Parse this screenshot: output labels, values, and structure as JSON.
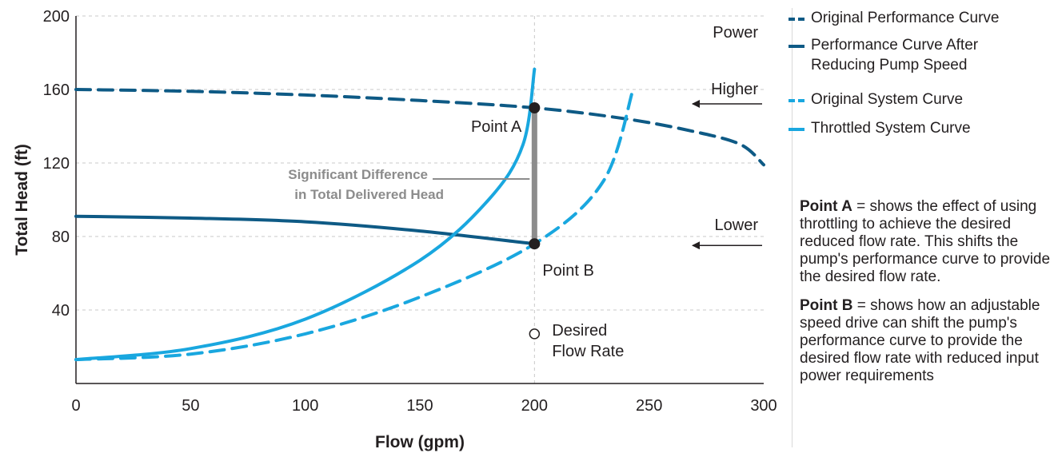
{
  "colors": {
    "dark_blue": "#0e5a85",
    "light_blue": "#19a7df",
    "difference_bar": "#8c8c8c",
    "grid": "#c8c8c8",
    "text": "#231f20"
  },
  "chart_data": {
    "type": "line",
    "xlabel": "Flow (gpm)",
    "ylabel": "Total Head (ft)",
    "xlim": [
      0,
      300
    ],
    "ylim": [
      0,
      200
    ],
    "xticks": [
      "0",
      "50",
      "100",
      "150",
      "200",
      "250",
      "300"
    ],
    "yticks": [
      "40",
      "80",
      "120",
      "160",
      "200"
    ],
    "grid": "dashed",
    "legend_position": "right",
    "series": [
      {
        "name": "Original Performance Curve",
        "style": "dashed",
        "color": "#0e5a85",
        "x": [
          0,
          50,
          100,
          150,
          200,
          240,
          270,
          290,
          300
        ],
        "y": [
          160,
          159,
          157,
          154,
          150,
          144,
          137,
          130,
          119
        ]
      },
      {
        "name": "Performance Curve After Reducing Pump Speed",
        "style": "solid",
        "color": "#0e5a85",
        "x": [
          0,
          50,
          100,
          150,
          200
        ],
        "y": [
          91,
          90,
          88,
          83,
          76
        ]
      },
      {
        "name": "Original System Curve",
        "style": "dashed",
        "color": "#19a7df",
        "x": [
          0,
          50,
          100,
          150,
          200,
          230,
          243
        ],
        "y": [
          13,
          16,
          27,
          47,
          76,
          110,
          160
        ]
      },
      {
        "name": "Throttled System Curve",
        "style": "solid",
        "color": "#19a7df",
        "x": [
          0,
          50,
          100,
          150,
          180,
          195,
          200
        ],
        "y": [
          13,
          19,
          35,
          67,
          100,
          130,
          171
        ]
      }
    ],
    "points": [
      {
        "label": "Point A",
        "x": 200,
        "y": 150
      },
      {
        "label": "Point B",
        "x": 200,
        "y": 76
      }
    ],
    "desired_marker": {
      "label_line1": "Desired",
      "label_line2": "Flow Rate",
      "x": 200,
      "y": 27
    },
    "annotations": {
      "power": "Power",
      "higher": "Higher",
      "lower": "Lower",
      "difference_line1": "Significant Difference",
      "difference_line2": "in Total Delivered Head"
    },
    "higher_arrow_y": 150,
    "lower_arrow_y": 76
  },
  "legend": [
    {
      "label": "Original Performance Curve",
      "swatch": "sw-dash-dark"
    },
    {
      "label": "Performance Curve After Reducing Pump Speed",
      "swatch": "sw-solid-dark"
    },
    {
      "label": "Original System Curve",
      "swatch": "sw-dash-light"
    },
    {
      "label": "Throttled System Curve",
      "swatch": "sw-solid-light"
    }
  ],
  "notes": [
    {
      "label": "Point A",
      "text": " = shows the effect of using throttling to achieve the desired reduced flow rate. This shifts the pump's performance curve to provide the desired flow rate."
    },
    {
      "label": "Point B",
      "text": " = shows how an adjustable speed drive can shift the pump's performance curve to provide the desired flow rate with reduced input power requirements"
    }
  ]
}
